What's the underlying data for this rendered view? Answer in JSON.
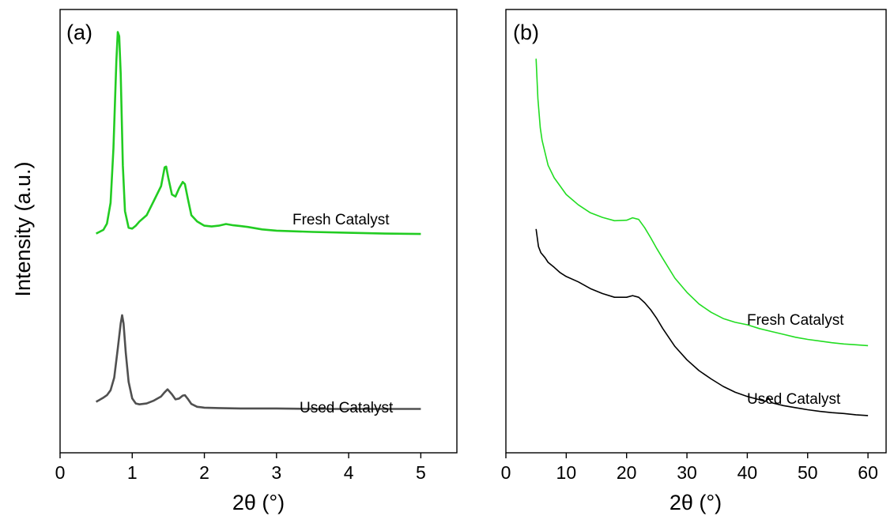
{
  "figure": {
    "ylabel": "Intensity (a.u.)"
  },
  "chart_data": [
    {
      "type": "line",
      "panel_label": "(a)",
      "xlabel": "2θ (°)",
      "ylabel": "Intensity (a.u.)",
      "xlim": [
        0,
        5.5
      ],
      "ylim": [
        0,
        100
      ],
      "xticks": [
        0,
        1,
        2,
        3,
        4,
        5
      ],
      "yticks": [],
      "grid": false,
      "series": [
        {
          "name": "Fresh Catalyst",
          "color": "#22cc22",
          "x": [
            0.5,
            0.6,
            0.65,
            0.7,
            0.74,
            0.78,
            0.8,
            0.82,
            0.84,
            0.87,
            0.9,
            0.95,
            1.0,
            1.05,
            1.1,
            1.2,
            1.3,
            1.4,
            1.45,
            1.47,
            1.5,
            1.55,
            1.6,
            1.65,
            1.7,
            1.73,
            1.77,
            1.82,
            1.9,
            2.0,
            2.1,
            2.2,
            2.3,
            2.4,
            2.5,
            2.6,
            2.8,
            3.0,
            3.5,
            4.0,
            4.5,
            5.0
          ],
          "y": [
            49.6,
            50.5,
            52,
            57,
            70,
            91,
            98,
            97,
            88,
            66,
            55,
            51,
            50.8,
            51.5,
            52.5,
            54,
            57.5,
            61,
            65.5,
            65.7,
            63,
            59,
            58.5,
            60.5,
            62,
            61.5,
            58,
            54,
            52.5,
            51.5,
            51.3,
            51.5,
            51.9,
            51.6,
            51.4,
            51.2,
            50.6,
            50.3,
            50,
            49.8,
            49.6,
            49.5
          ]
        },
        {
          "name": "Used Catalyst",
          "color": "#505050",
          "x": [
            0.5,
            0.6,
            0.65,
            0.7,
            0.75,
            0.8,
            0.84,
            0.86,
            0.88,
            0.91,
            0.95,
            1.0,
            1.05,
            1.1,
            1.2,
            1.3,
            1.4,
            1.45,
            1.49,
            1.55,
            1.6,
            1.65,
            1.7,
            1.73,
            1.77,
            1.82,
            1.9,
            2.0,
            2.2,
            2.5,
            3.0,
            3.5,
            4.0,
            4.5,
            5.0
          ],
          "y": [
            9.2,
            10.2,
            10.8,
            12,
            15,
            22,
            28,
            30,
            28,
            21,
            14,
            10,
            8.8,
            8.6,
            8.8,
            9.5,
            10.5,
            11.5,
            12.2,
            11,
            9.8,
            10,
            10.7,
            10.8,
            9.9,
            8.7,
            8,
            7.8,
            7.7,
            7.6,
            7.6,
            7.5,
            7.5,
            7.5,
            7.5
          ]
        }
      ]
    },
    {
      "type": "line",
      "panel_label": "(b)",
      "xlabel": "2θ (°)",
      "xlim": [
        0,
        63
      ],
      "ylim": [
        0,
        100
      ],
      "xticks": [
        0,
        10,
        20,
        30,
        40,
        50,
        60
      ],
      "yticks": [],
      "grid": false,
      "series": [
        {
          "name": "Fresh Catalyst",
          "color": "#22dd22",
          "x": [
            5,
            5.3,
            5.7,
            6,
            6.5,
            7,
            8,
            9,
            10,
            12,
            14,
            16,
            18,
            20,
            21,
            22,
            23,
            24,
            25,
            26,
            28,
            30,
            32,
            34,
            36,
            38,
            40,
            42,
            44,
            46,
            48,
            50,
            52,
            54,
            56,
            58,
            60
          ],
          "y": [
            91.6,
            82,
            75,
            72,
            69,
            66,
            63,
            61,
            59,
            56.5,
            54.6,
            53.5,
            52.7,
            52.8,
            53.4,
            53,
            51,
            48.6,
            46,
            43.6,
            38.9,
            35.5,
            32.7,
            30.7,
            29.2,
            28.3,
            27.7,
            26.8,
            26.1,
            25.4,
            24.7,
            24.2,
            23.8,
            23.4,
            23.1,
            22.9,
            22.7
          ]
        },
        {
          "name": "Used Catalyst",
          "color": "#000000",
          "x": [
            5,
            5.4,
            5.8,
            6.5,
            7,
            8,
            9,
            10,
            12,
            14,
            16,
            18,
            20,
            21,
            22,
            23,
            24,
            25,
            26,
            28,
            30,
            32,
            34,
            36,
            38,
            40,
            42,
            43,
            43.5,
            44,
            46,
            48,
            50,
            52,
            54,
            56,
            58,
            60
          ],
          "y": [
            50.7,
            46.5,
            45,
            43.8,
            42.7,
            41.5,
            40.2,
            39.3,
            38,
            36.4,
            35.2,
            34.3,
            34.3,
            34.7,
            34.3,
            33,
            31.3,
            29.2,
            26.8,
            22.5,
            19.3,
            16.7,
            14.7,
            12.9,
            11.5,
            10.5,
            9.7,
            9.3,
            10.2,
            9,
            8.3,
            7.8,
            7.3,
            6.9,
            6.6,
            6.4,
            6.1,
            5.9
          ]
        }
      ]
    }
  ]
}
